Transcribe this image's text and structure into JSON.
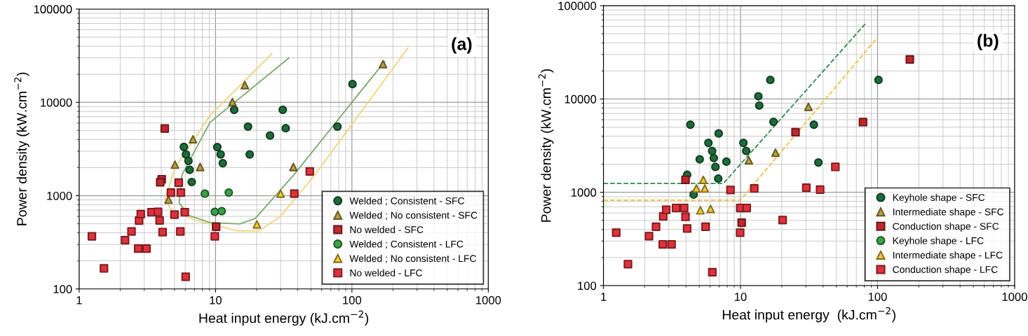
{
  "chart_data": [
    {
      "type": "scatter",
      "xlabel": "Heat input energy (kJ.cm$^{−2}$)",
      "ylabel": "Power density (kW.cm$^{−2}$)",
      "log": "xy",
      "xlim": [
        1,
        1000
      ],
      "ylim": [
        100,
        100000
      ],
      "xticks": [
        1,
        10,
        100,
        1000
      ],
      "yticks": [
        100,
        1000,
        10000,
        100000
      ],
      "grid": true,
      "legend": "bottom right",
      "annotations": [
        "(a)"
      ],
      "series": [
        {
          "type": "line",
          "color": "#f2d27a",
          "line_style": "solid",
          "x": [
            25.8,
            9.1,
            5.04,
            4.27,
            4.75,
            7.18,
            14.6,
            20.8,
            29.6,
            53.5,
            258
          ],
          "values": [
            33000,
            7240,
            1980,
            912,
            703,
            543,
            419,
            419,
            592,
            1670,
            38500
          ]
        },
        {
          "type": "line",
          "color": "#7aa86a",
          "line_style": "solid",
          "x": [
            34.5,
            9.1,
            5.67,
            5.41,
            6.38,
            9.1,
            15.1,
            19.6,
            37.5,
            96.5,
            174
          ],
          "values": [
            29900,
            6100,
            1670,
            836,
            613,
            516,
            498,
            572,
            1670,
            9380,
            27400
          ]
        },
        {
          "name": "Welded ; Consistent - SFC",
          "marker": "circle",
          "color": "#1e6b3a",
          "x": [
            5.86,
            6.07,
            6.33,
            6.46,
            6.69,
            10.3,
            10.9,
            11.3,
            13.7,
            17.3,
            17.8,
            25.1,
            31.1,
            32.7,
            101,
            78.3
          ],
          "values": [
            3330,
            2770,
            2360,
            1890,
            1400,
            3320,
            2770,
            2230,
            8320,
            5500,
            2770,
            4410,
            8320,
            5280,
            15700,
            5500
          ]
        },
        {
          "name": "Welded ; No consistent - SFC",
          "marker": "triangle",
          "color": "#b8a040",
          "x": [
            16.4,
            13.3,
            6.83,
            5.04,
            7.71,
            4.52,
            169,
            37.2
          ],
          "values": [
            15300,
            10100,
            4020,
            2150,
            2030,
            906,
            25700,
            2030
          ]
        },
        {
          "name": "No welded - SFC",
          "marker": "square",
          "color": "#c0282d",
          "x": [
            4.24,
            4.03,
            3.93,
            10.1
          ],
          "values": [
            5250,
            1500,
            1390,
            465
          ]
        },
        {
          "name": "Welded ; Consistent - LFC",
          "marker": "circle",
          "color": "#3aa04a",
          "x": [
            8.35,
            12.5,
            9.88,
            11.1
          ],
          "values": [
            1050,
            1080,
            671,
            683
          ]
        },
        {
          "name": "Welded ; No consistent - LFC",
          "marker": "triangle",
          "color": "#f0c832",
          "x": [
            20.1,
            30.0
          ],
          "values": [
            492,
            1050
          ]
        },
        {
          "name": "No welded - LFC",
          "marker": "square",
          "color": "#e0323c",
          "x": [
            1.24,
            1.52,
            2.17,
            2.42,
            2.75,
            2.83,
            2.71,
            3.12,
            3.39,
            3.79,
            3.89,
            4.09,
            5.0,
            5.37,
            4.71,
            5.56,
            5.95,
            5.52,
            6.04,
            9.88,
            49.1,
            37.8
          ],
          "values": [
            367,
            166,
            333,
            414,
            540,
            634,
            271,
            271,
            664,
            670,
            543,
            407,
            627,
            1380,
            1080,
            1080,
            664,
            414,
            135,
            367,
            1820,
            1050
          ]
        }
      ]
    },
    {
      "type": "scatter",
      "xlabel": "Heat input energy  (kJ.cm$^{−2}$)",
      "ylabel": "Power density (kW.cm$^{−2}$)",
      "log": "xy",
      "xlim": [
        1,
        1000
      ],
      "ylim": [
        100,
        100000
      ],
      "xticks": [
        1,
        10,
        100,
        1000
      ],
      "yticks": [
        100,
        1000,
        10000,
        100000
      ],
      "grid": true,
      "legend": "bottom right",
      "annotations": [
        "(b)"
      ],
      "series": [
        {
          "type": "line",
          "color": "#2e8b4a",
          "line_style": "dashed",
          "x": [
            1,
            7.5,
            82.8
          ],
          "values": [
            1245,
            1245,
            65800
          ]
        },
        {
          "type": "line",
          "color": "#f0c040",
          "line_style": "dashed",
          "x": [
            1,
            10.0,
            96.9
          ],
          "values": [
            826,
            826,
            43400
          ]
        },
        {
          "name": "Keyhole shape - SFC",
          "marker": "circle",
          "color": "#1e6b3a",
          "x": [
            4.31,
            4.08,
            4.55,
            5.04,
            5.83,
            6.21,
            6.39,
            6.56,
            6.88,
            6.93,
            7.89,
            10.5,
            11.0,
            13.5,
            13.7,
            16.5,
            17.4,
            34.3,
            37.0,
            101.6
          ],
          "values": [
            5310,
            1540,
            945,
            2260,
            3390,
            2770,
            2330,
            1870,
            1400,
            4270,
            2130,
            3390,
            2770,
            10700,
            8510,
            16000,
            5690,
            5310,
            2090,
            16000
          ]
        },
        {
          "name": "Intermediate shape - SFC",
          "marker": "triangle",
          "color": "#b8a040",
          "x": [
            11.5,
            18.0,
            31.3
          ],
          "values": [
            2200,
            2660,
            8260
          ]
        },
        {
          "name": "Conduction shape - SFC",
          "marker": "square",
          "color": "#c0282d",
          "x": [
            3.97,
            10.2,
            25.2,
            78.3,
            172
          ],
          "values": [
            1360,
            473,
            4400,
            5650,
            26600
          ]
        },
        {
          "name": "Keyhole shape - LFC",
          "marker": "circle",
          "color": "#3aa04a"
        },
        {
          "name": "Intermediate shape - LFC",
          "marker": "triangle",
          "color": "#f0c832",
          "x": [
            5.35,
            4.77,
            5.49,
            5.1,
            6.05
          ],
          "values": [
            1360,
            1100,
            1100,
            641,
            664
          ]
        },
        {
          "name": "Conduction shape - LFC",
          "marker": "square",
          "color": "#e0323c",
          "x": [
            1.24,
            1.51,
            2.15,
            2.42,
            2.73,
            2.87,
            2.71,
            3.14,
            3.39,
            3.88,
            3.97,
            4.08,
            5.56,
            6.23,
            8.45,
            9.96,
            11.1,
            9.94,
            12.6,
            20.3,
            49.2,
            30.2,
            38.1
          ],
          "values": [
            369,
            170,
            339,
            427,
            553,
            649,
            277,
            277,
            680,
            680,
            546,
            409,
            427,
            139,
            1060,
            680,
            680,
            369,
            1100,
            504,
            1870,
            1120,
            1070
          ]
        }
      ]
    }
  ]
}
